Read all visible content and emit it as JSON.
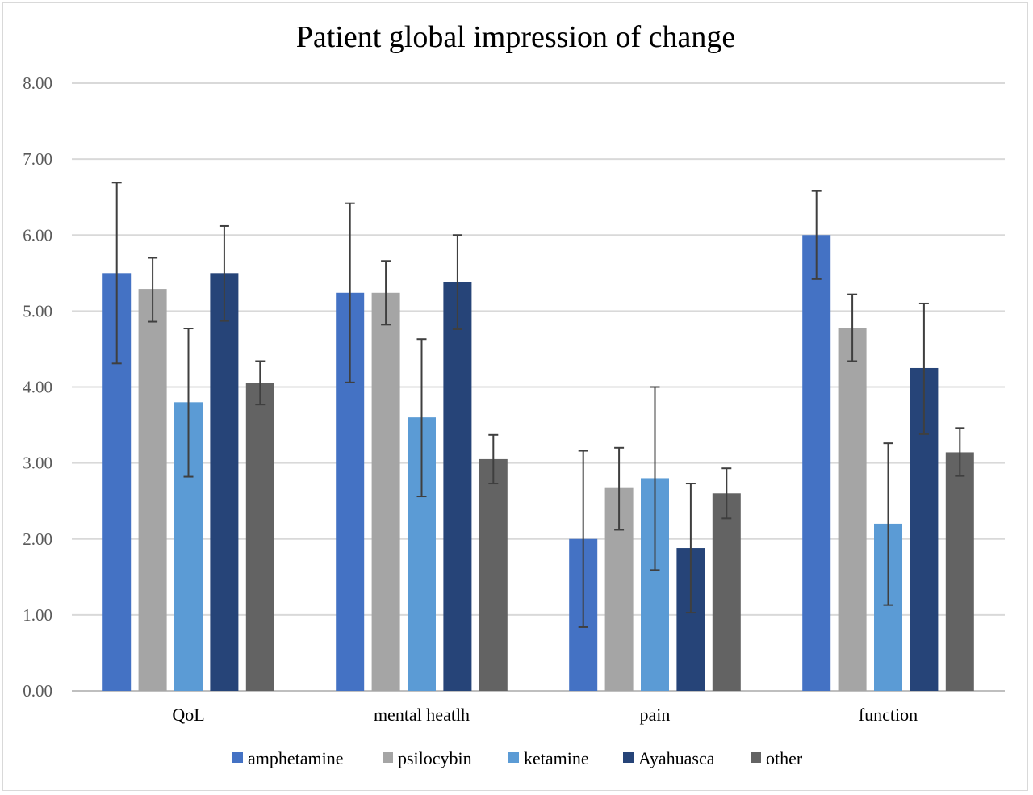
{
  "chart_data": {
    "type": "bar",
    "title": "Patient global impression of change",
    "xlabel": "",
    "ylabel": "",
    "ylim": [
      0,
      8
    ],
    "yticks": [
      "0.00",
      "1.00",
      "2.00",
      "3.00",
      "4.00",
      "5.00",
      "6.00",
      "7.00",
      "8.00"
    ],
    "grid": true,
    "legend_position": "bottom",
    "categories": [
      "QoL",
      "mental heatlh",
      "pain",
      "function"
    ],
    "series": [
      {
        "name": "amphetamine",
        "color": "#4472c4",
        "values": [
          5.5,
          5.24,
          2.0,
          6.0
        ],
        "err_low": [
          4.31,
          4.06,
          0.84,
          5.42
        ],
        "err_high": [
          6.69,
          6.42,
          3.16,
          6.58
        ]
      },
      {
        "name": "psilocybin",
        "color": "#a5a5a5",
        "values": [
          5.29,
          5.24,
          2.67,
          4.78
        ],
        "err_low": [
          4.86,
          4.82,
          2.12,
          4.34
        ],
        "err_high": [
          5.7,
          5.66,
          3.2,
          5.22
        ]
      },
      {
        "name": "ketamine",
        "color": "#5b9bd5",
        "values": [
          3.8,
          3.6,
          2.8,
          2.2
        ],
        "err_low": [
          2.82,
          2.56,
          1.59,
          1.13
        ],
        "err_high": [
          4.77,
          4.63,
          4.0,
          3.26
        ]
      },
      {
        "name": "Ayahuasca",
        "color": "#264478",
        "values": [
          5.5,
          5.38,
          1.88,
          4.25
        ],
        "err_low": [
          4.87,
          4.76,
          1.03,
          3.38
        ],
        "err_high": [
          6.12,
          6.0,
          2.73,
          5.1
        ]
      },
      {
        "name": "other",
        "color": "#636363",
        "values": [
          4.05,
          3.05,
          2.6,
          3.14
        ],
        "err_low": [
          3.77,
          2.73,
          2.27,
          2.83
        ],
        "err_high": [
          4.34,
          3.37,
          2.93,
          3.46
        ]
      }
    ]
  }
}
